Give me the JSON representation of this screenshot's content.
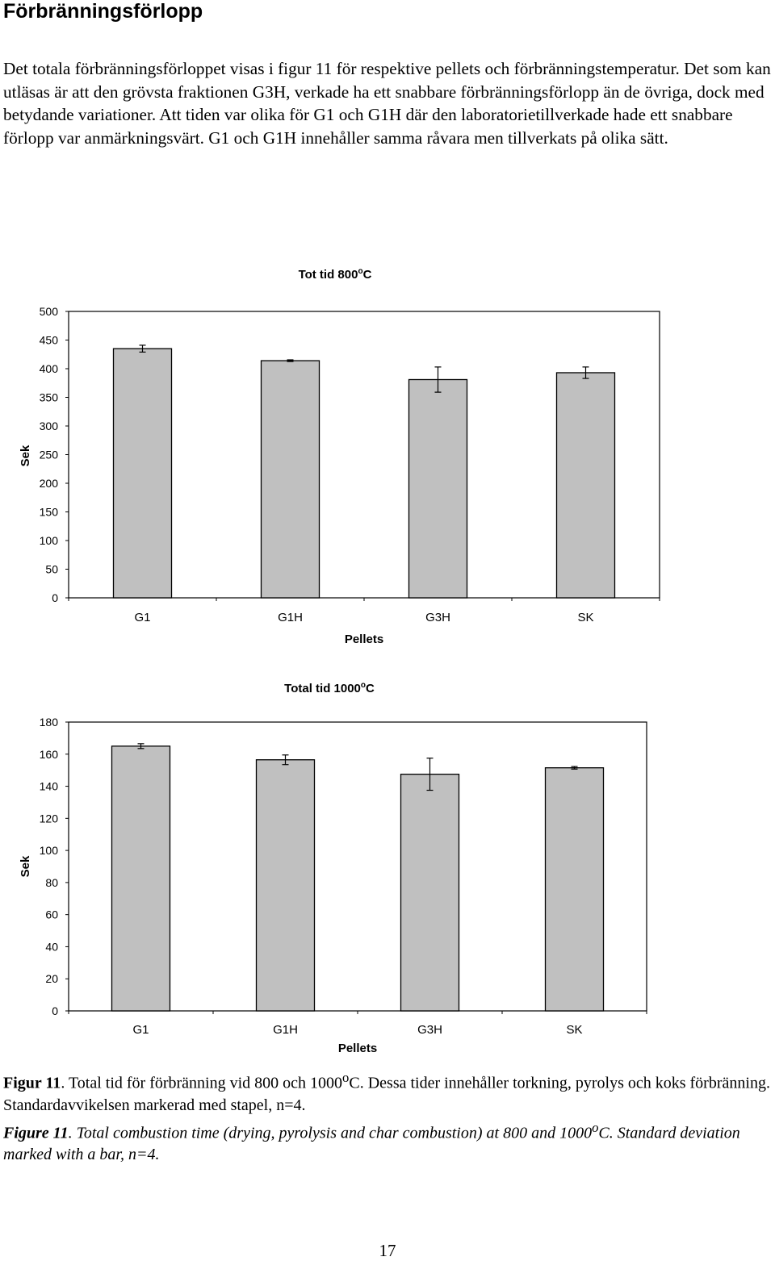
{
  "document": {
    "heading": "Förbränningsförlopp",
    "paragraph": "Det totala förbränningsförloppet visas i figur 11 för respektive pellets och förbränningstemperatur. Det som kan utläsas är att den grövsta fraktionen G3H, verkade ha ett snabbare förbränningsförlopp än de övriga, dock med betydande variationer. Att tiden var olika för G1 och G1H där den laboratorietillverkade hade ett snabbare förlopp var anmärkningsvärt. G1 och G1H innehåller samma råvara men tillverkats på olika sätt.",
    "caption_sv": {
      "label": "Figur 11",
      "text_before_sup": ". Total tid för förbränning vid 800 och 1000",
      "sup": "o",
      "text_after_sup": "C. Dessa tider innehåller torkning, pyrolys och koks förbränning. Standardavvikelsen markerad med stapel, n=4."
    },
    "caption_en": {
      "label": "Figure 11",
      "text_before_sup": ". Total combustion time (drying, pyrolysis and char combustion) at 800 and 1000",
      "sup": "o",
      "text_after_sup": "C. Standard deviation marked with a bar, n=4."
    },
    "page_number": "17"
  },
  "chart_data": [
    {
      "type": "bar",
      "title": "Tot tid 800",
      "title_sup": "o",
      "title_suffix": "C",
      "xlabel": "Pellets",
      "ylabel": "Sek",
      "categories": [
        "G1",
        "G1H",
        "G3H",
        "SK"
      ],
      "values": [
        435,
        414,
        381,
        393
      ],
      "errors": [
        6,
        1.5,
        22,
        10
      ],
      "ylim": [
        0,
        500
      ],
      "yticks": [
        0,
        50,
        100,
        150,
        200,
        250,
        300,
        350,
        400,
        450,
        500
      ],
      "grid": false,
      "bar_color": "#c0c0c0"
    },
    {
      "type": "bar",
      "title": "Total tid 1000",
      "title_sup": "o",
      "title_suffix": "C",
      "xlabel": "Pellets",
      "ylabel": "Sek",
      "categories": [
        "G1",
        "G1H",
        "G3H",
        "SK"
      ],
      "values": [
        165,
        156.5,
        147.5,
        151.5
      ],
      "errors": [
        1.5,
        3,
        10,
        0.8
      ],
      "ylim": [
        0,
        180
      ],
      "yticks": [
        0,
        20,
        40,
        60,
        80,
        100,
        120,
        140,
        160,
        180
      ],
      "grid": false,
      "bar_color": "#c0c0c0"
    }
  ]
}
